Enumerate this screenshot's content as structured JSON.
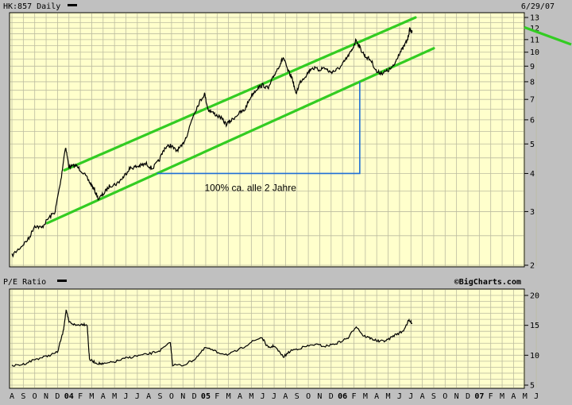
{
  "chart_data": [
    {
      "type": "line",
      "header_label": "HK:857 Daily",
      "date_label": "6/29/07",
      "y_scale": "log",
      "ylim": [
        2,
        13
      ],
      "y_ticks": [
        2,
        3,
        4,
        5,
        6,
        7,
        8,
        9,
        10,
        11,
        12,
        13
      ],
      "grid": true,
      "price": [
        {
          "t": 0,
          "v": 2.15
        },
        {
          "t": 0.8,
          "v": 2.3
        },
        {
          "t": 1.5,
          "v": 2.45
        },
        {
          "t": 2,
          "v": 2.7
        },
        {
          "t": 2.6,
          "v": 2.65
        },
        {
          "t": 3.2,
          "v": 2.85
        },
        {
          "t": 3.8,
          "v": 3.0
        },
        {
          "t": 4.3,
          "v": 3.8
        },
        {
          "t": 4.7,
          "v": 4.9
        },
        {
          "t": 5.0,
          "v": 4.2
        },
        {
          "t": 5.6,
          "v": 4.25
        },
        {
          "t": 6.2,
          "v": 4.05
        },
        {
          "t": 6.8,
          "v": 3.75
        },
        {
          "t": 7.2,
          "v": 3.55
        },
        {
          "t": 7.6,
          "v": 3.3
        },
        {
          "t": 8.1,
          "v": 3.45
        },
        {
          "t": 8.6,
          "v": 3.65
        },
        {
          "t": 9.2,
          "v": 3.7
        },
        {
          "t": 9.8,
          "v": 3.9
        },
        {
          "t": 10.3,
          "v": 4.15
        },
        {
          "t": 10.8,
          "v": 4.2
        },
        {
          "t": 11.3,
          "v": 4.25
        },
        {
          "t": 11.8,
          "v": 4.3
        },
        {
          "t": 12.3,
          "v": 4.15
        },
        {
          "t": 12.9,
          "v": 4.4
        },
        {
          "t": 13.4,
          "v": 4.85
        },
        {
          "t": 13.9,
          "v": 4.95
        },
        {
          "t": 14.4,
          "v": 4.75
        },
        {
          "t": 14.9,
          "v": 4.9
        },
        {
          "t": 15.4,
          "v": 5.4
        },
        {
          "t": 15.9,
          "v": 6.2
        },
        {
          "t": 16.4,
          "v": 6.8
        },
        {
          "t": 16.9,
          "v": 7.3
        },
        {
          "t": 17.2,
          "v": 6.5
        },
        {
          "t": 17.7,
          "v": 6.3
        },
        {
          "t": 18.3,
          "v": 6.1
        },
        {
          "t": 18.8,
          "v": 5.8
        },
        {
          "t": 19.3,
          "v": 6.0
        },
        {
          "t": 19.9,
          "v": 6.3
        },
        {
          "t": 20.4,
          "v": 6.45
        },
        {
          "t": 21.0,
          "v": 7.2
        },
        {
          "t": 21.5,
          "v": 7.6
        },
        {
          "t": 22.0,
          "v": 7.8
        },
        {
          "t": 22.5,
          "v": 7.6
        },
        {
          "t": 23.0,
          "v": 8.4
        },
        {
          "t": 23.5,
          "v": 9.1
        },
        {
          "t": 23.8,
          "v": 9.6
        },
        {
          "t": 24.2,
          "v": 8.7
        },
        {
          "t": 24.6,
          "v": 8.2
        },
        {
          "t": 24.9,
          "v": 7.3
        },
        {
          "t": 25.3,
          "v": 8.0
        },
        {
          "t": 25.8,
          "v": 8.4
        },
        {
          "t": 26.3,
          "v": 8.9
        },
        {
          "t": 26.9,
          "v": 8.75
        },
        {
          "t": 27.4,
          "v": 8.9
        },
        {
          "t": 27.9,
          "v": 8.6
        },
        {
          "t": 28.4,
          "v": 8.7
        },
        {
          "t": 28.9,
          "v": 9.0
        },
        {
          "t": 29.4,
          "v": 9.6
        },
        {
          "t": 29.8,
          "v": 10.1
        },
        {
          "t": 30.2,
          "v": 11.0
        },
        {
          "t": 30.6,
          "v": 10.2
        },
        {
          "t": 31.0,
          "v": 9.7
        },
        {
          "t": 31.5,
          "v": 9.4
        },
        {
          "t": 32.0,
          "v": 8.6
        },
        {
          "t": 32.5,
          "v": 8.55
        },
        {
          "t": 33.0,
          "v": 8.7
        },
        {
          "t": 33.5,
          "v": 9.0
        },
        {
          "t": 33.9,
          "v": 9.8
        },
        {
          "t": 34.3,
          "v": 10.3
        },
        {
          "t": 34.7,
          "v": 11.0
        },
        {
          "t": 34.9,
          "v": 11.9
        },
        {
          "t": 35.1,
          "v": 11.6
        }
      ],
      "channel_upper": [
        {
          "t": 4.6,
          "v": 4.1
        },
        {
          "t": 35.4,
          "v": 13.0
        }
      ],
      "channel_lower": [
        {
          "t": 3.1,
          "v": 2.75
        },
        {
          "t": 37.0,
          "v": 10.3
        }
      ],
      "measure_text": "100% ca. alle 2 Jahre",
      "measure_low": 4.0,
      "measure_high": 8.0
    },
    {
      "type": "line",
      "header_label": "P/E Ratio",
      "watermark": "©BigCharts.com",
      "ylim": [
        5,
        20
      ],
      "y_ticks": [
        5,
        10,
        15,
        20
      ],
      "grid": true,
      "pe": [
        {
          "t": 0,
          "v": 8.2
        },
        {
          "t": 1,
          "v": 8.5
        },
        {
          "t": 2,
          "v": 9.3
        },
        {
          "t": 3,
          "v": 9.8
        },
        {
          "t": 4.0,
          "v": 10.5
        },
        {
          "t": 4.5,
          "v": 14.0
        },
        {
          "t": 4.75,
          "v": 17.5
        },
        {
          "t": 5.0,
          "v": 15.6
        },
        {
          "t": 5.6,
          "v": 15.0
        },
        {
          "t": 6.2,
          "v": 15.2
        },
        {
          "t": 6.6,
          "v": 15.1
        },
        {
          "t": 6.8,
          "v": 9.3
        },
        {
          "t": 7.4,
          "v": 8.7
        },
        {
          "t": 8.0,
          "v": 8.5
        },
        {
          "t": 9.0,
          "v": 8.9
        },
        {
          "t": 10.0,
          "v": 9.5
        },
        {
          "t": 11.0,
          "v": 9.9
        },
        {
          "t": 12.0,
          "v": 10.2
        },
        {
          "t": 13.0,
          "v": 10.8
        },
        {
          "t": 13.9,
          "v": 12.1
        },
        {
          "t": 14.1,
          "v": 8.4
        },
        {
          "t": 15.0,
          "v": 8.3
        },
        {
          "t": 16.0,
          "v": 9.3
        },
        {
          "t": 17.0,
          "v": 11.3
        },
        {
          "t": 18.0,
          "v": 10.5
        },
        {
          "t": 19.0,
          "v": 10.1
        },
        {
          "t": 20.0,
          "v": 11.0
        },
        {
          "t": 21.0,
          "v": 12.2
        },
        {
          "t": 21.9,
          "v": 13.0
        },
        {
          "t": 22.5,
          "v": 11.2
        },
        {
          "t": 23.0,
          "v": 11.6
        },
        {
          "t": 23.8,
          "v": 9.7
        },
        {
          "t": 24.5,
          "v": 10.8
        },
        {
          "t": 25.5,
          "v": 11.3
        },
        {
          "t": 26.5,
          "v": 11.8
        },
        {
          "t": 27.5,
          "v": 11.5
        },
        {
          "t": 28.5,
          "v": 12.0
        },
        {
          "t": 29.5,
          "v": 12.9
        },
        {
          "t": 30.2,
          "v": 14.9
        },
        {
          "t": 30.8,
          "v": 13.3
        },
        {
          "t": 31.5,
          "v": 12.8
        },
        {
          "t": 32.2,
          "v": 12.3
        },
        {
          "t": 32.9,
          "v": 12.5
        },
        {
          "t": 33.6,
          "v": 13.4
        },
        {
          "t": 34.3,
          "v": 14.0
        },
        {
          "t": 34.8,
          "v": 15.8
        },
        {
          "t": 35.1,
          "v": 15.4
        }
      ]
    }
  ],
  "x_axis": {
    "labels": [
      "A",
      "S",
      "O",
      "N",
      "D",
      "04",
      "F",
      "M",
      "A",
      "M",
      "J",
      "J",
      "A",
      "S",
      "O",
      "N",
      "D",
      "05",
      "F",
      "M",
      "A",
      "M",
      "J",
      "J",
      "A",
      "S",
      "O",
      "N",
      "D",
      "06",
      "F",
      "M",
      "A",
      "M",
      "J",
      "J",
      "A",
      "S",
      "O",
      "N",
      "D",
      "07",
      "F",
      "M",
      "A",
      "M",
      "J"
    ],
    "highlight": [
      "04",
      "05",
      "06",
      "07"
    ]
  }
}
